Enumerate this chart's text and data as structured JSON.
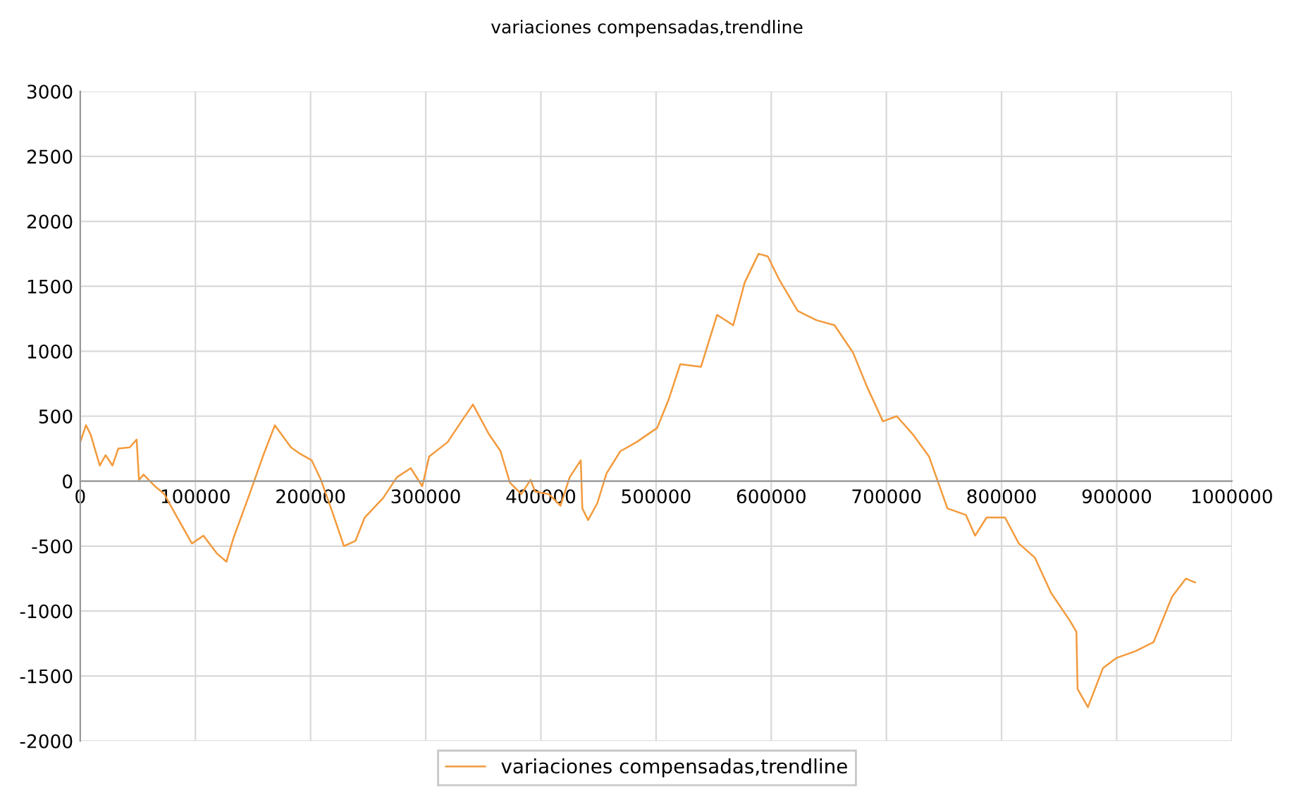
{
  "chart_data": {
    "type": "line",
    "title": "variaciones compensadas,trendline",
    "x": [
      0,
      5000,
      9000,
      17000,
      22000,
      28000,
      33000,
      43000,
      49000,
      51000,
      55000,
      65000,
      73000,
      83000,
      97000,
      107000,
      119000,
      127000,
      133000,
      147000,
      159000,
      169000,
      183000,
      191000,
      201000,
      209000,
      219000,
      229000,
      239000,
      247000,
      263000,
      275000,
      287000,
      297000,
      303000,
      319000,
      331000,
      341000,
      355000,
      365000,
      373000,
      383000,
      391000,
      395000,
      407000,
      417000,
      425000,
      434600,
      436000,
      441000,
      449000,
      457000,
      469000,
      483000,
      501000,
      511000,
      521000,
      539000,
      553000,
      567000,
      577000,
      589000,
      597000,
      607000,
      623000,
      639000,
      655000,
      671000,
      683000,
      697000,
      709000,
      723000,
      737000,
      753000,
      769000,
      777000,
      787000,
      803000,
      815000,
      829000,
      843000,
      859000,
      865000,
      866000,
      875000,
      888000,
      900000,
      916000,
      932000,
      948000,
      960000,
      968000
    ],
    "series": [
      {
        "name": "variaciones compensadas,trendline",
        "color": "#f39a3c",
        "values": [
          300,
          430,
          360,
          120,
          200,
          120,
          250,
          260,
          320,
          10,
          50,
          -40,
          -100,
          -260,
          -480,
          -420,
          -560,
          -620,
          -440,
          -100,
          200,
          430,
          260,
          210,
          160,
          10,
          -240,
          -500,
          -460,
          -280,
          -130,
          30,
          100,
          -40,
          190,
          300,
          460,
          590,
          360,
          230,
          -10,
          -100,
          10,
          -80,
          -100,
          -190,
          30,
          160,
          -210,
          -300,
          -170,
          60,
          230,
          300,
          410,
          630,
          900,
          880,
          1280,
          1200,
          1530,
          1750,
          1730,
          1550,
          1310,
          1240,
          1200,
          990,
          730,
          460,
          500,
          360,
          190,
          -210,
          -260,
          -420,
          -280,
          -280,
          -480,
          -590,
          -860,
          -1070,
          -1160,
          -1600,
          -1740,
          -1440,
          -1360,
          -1310,
          -1240,
          -890,
          -750,
          -780
        ]
      }
    ],
    "xlim": [
      0,
      1000000
    ],
    "xticks": [
      0,
      100000,
      200000,
      300000,
      400000,
      500000,
      600000,
      700000,
      800000,
      900000,
      1000000
    ],
    "ylim": [
      -2000,
      3000
    ],
    "yticks": [
      -2000,
      -1500,
      -1000,
      -500,
      0,
      500,
      1000,
      1500,
      2000,
      2500,
      3000
    ],
    "grid": true,
    "legend": "bottom",
    "marker": "none",
    "line_style": "solid"
  }
}
